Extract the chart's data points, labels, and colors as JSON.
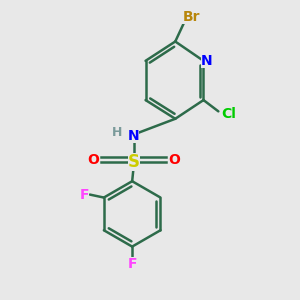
{
  "bg_color": "#e8e8e8",
  "bond_color": "#2d6b4a",
  "bond_lw": 1.8,
  "atom_colors": {
    "Br": "#b8860b",
    "N": "#0000ff",
    "Cl": "#00cc00",
    "H": "#7a9a9a",
    "S": "#cccc00",
    "O": "#ff0000",
    "F": "#ff44ff",
    "C": "#2d6b4a"
  }
}
